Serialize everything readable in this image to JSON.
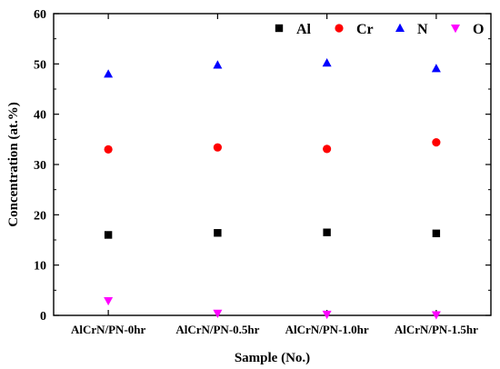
{
  "chart_data": {
    "type": "scatter",
    "title": "",
    "xlabel": "Sample (No.)",
    "ylabel": "Concentration (at.%)",
    "categories": [
      "AlCrN/PN-0hr",
      "AlCrN/PN-0.5hr",
      "AlCrN/PN-1.0hr",
      "AlCrN/PN-1.5hr"
    ],
    "ylim": [
      0,
      60
    ],
    "yticks": [
      "0",
      "10",
      "20",
      "30",
      "40",
      "50",
      "60"
    ],
    "grid": false,
    "legend_position": "top-right",
    "series": [
      {
        "name": "Al",
        "marker": "square",
        "color": "#000000",
        "values": [
          16.0,
          16.4,
          16.5,
          16.3
        ]
      },
      {
        "name": "Cr",
        "marker": "circle",
        "color": "#ff0000",
        "values": [
          33.0,
          33.4,
          33.1,
          34.4
        ]
      },
      {
        "name": "N",
        "marker": "triangle-up",
        "color": "#0000ff",
        "values": [
          48.0,
          49.8,
          50.2,
          49.1
        ]
      },
      {
        "name": "O",
        "marker": "triangle-down",
        "color": "#ff00ff",
        "values": [
          2.9,
          0.4,
          0.2,
          0.1
        ]
      }
    ]
  }
}
